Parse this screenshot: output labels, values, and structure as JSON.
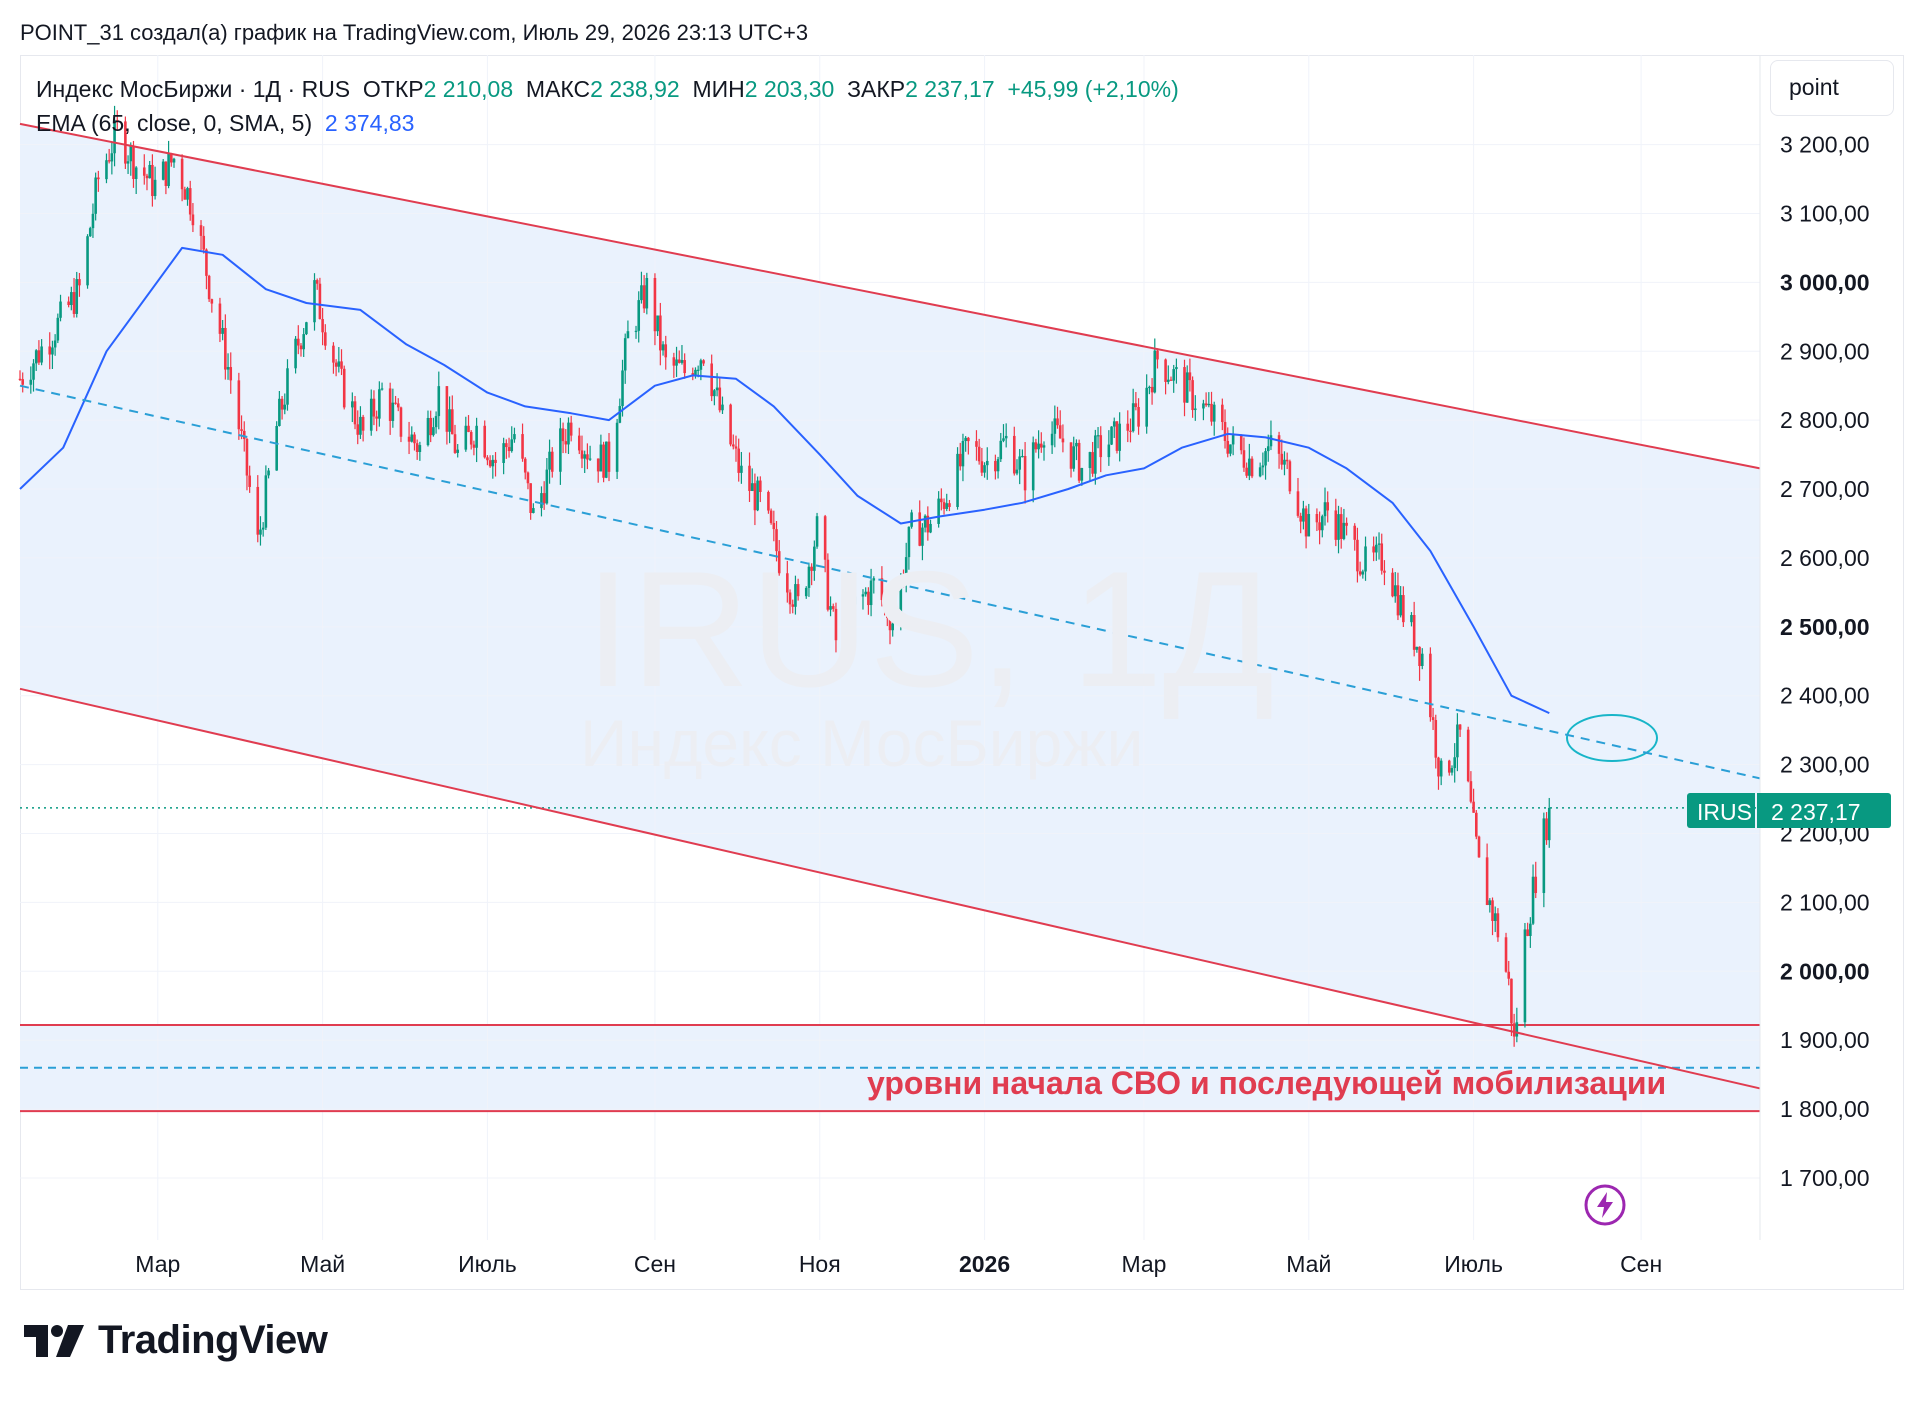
{
  "header": {
    "text": "POINT_31 создал(а) график на TradingView.com, Июль 29, 2026 23:13 UTC+3"
  },
  "legend": {
    "line1": {
      "title": "Индекс МосБиржи · 1Д · RUS",
      "open_label": "ОТКР",
      "open": "2 210,08",
      "high_label": "МАКС",
      "high": "2 238,92",
      "low_label": "МИН",
      "low": "2 203,30",
      "close_label": "ЗАКР",
      "close": "2 237,17",
      "change": "+45,99 (+2,10%)"
    },
    "line2": {
      "indicator": "EMA (65, close, 0, SMA, 5)",
      "value": "2 374,83"
    }
  },
  "unit_label": "point",
  "watermark": {
    "main": "IRUS, 1Д",
    "sub": "Индекс МосБиржи"
  },
  "price_tag": {
    "symbol": "IRUS",
    "value": "2 237,17"
  },
  "annotation": "уровни начала СВО и последующей мобилизации",
  "logo_text": "TradingView",
  "colors": {
    "up": "#089981",
    "down": "#f23645",
    "ema": "#2962ff",
    "channel": "#e03c50",
    "midline": "#2a9fd6",
    "fill": "#eaf2fd",
    "ellipse": "#18b5c8"
  },
  "chart_data": {
    "type": "candlestick",
    "symbol": "IRUS",
    "interval": "1Д",
    "ylim": [
      1610,
      3330
    ],
    "x_range": [
      "2025-01-09",
      "2026-10-15"
    ],
    "y_ticks": [
      {
        "value": 3200,
        "label": "3 200,00",
        "bold": false
      },
      {
        "value": 3100,
        "label": "3 100,00",
        "bold": false
      },
      {
        "value": 3000,
        "label": "3 000,00",
        "bold": true
      },
      {
        "value": 2900,
        "label": "2 900,00",
        "bold": false
      },
      {
        "value": 2800,
        "label": "2 800,00",
        "bold": false
      },
      {
        "value": 2700,
        "label": "2 700,00",
        "bold": false
      },
      {
        "value": 2600,
        "label": "2 600,00",
        "bold": false
      },
      {
        "value": 2500,
        "label": "2 500,00",
        "bold": true
      },
      {
        "value": 2400,
        "label": "2 400,00",
        "bold": false
      },
      {
        "value": 2300,
        "label": "2 300,00",
        "bold": false
      },
      {
        "value": 2200,
        "label": "2 200,00",
        "bold": false
      },
      {
        "value": 2100,
        "label": "2 100,00",
        "bold": false
      },
      {
        "value": 2000,
        "label": "2 000,00",
        "bold": true
      },
      {
        "value": 1900,
        "label": "1 900,00",
        "bold": false
      },
      {
        "value": 1800,
        "label": "1 800,00",
        "bold": false
      },
      {
        "value": 1700,
        "label": "1 700,00",
        "bold": false
      }
    ],
    "x_ticks": [
      {
        "date": "2025-03-01",
        "label": "Мар",
        "bold": false
      },
      {
        "date": "2025-05-01",
        "label": "Май",
        "bold": false
      },
      {
        "date": "2025-07-01",
        "label": "Июль",
        "bold": false
      },
      {
        "date": "2025-09-01",
        "label": "Сен",
        "bold": false
      },
      {
        "date": "2025-11-01",
        "label": "Ноя",
        "bold": false
      },
      {
        "date": "2026-01-01",
        "label": "2026",
        "bold": true
      },
      {
        "date": "2026-03-01",
        "label": "Мар",
        "bold": false
      },
      {
        "date": "2026-05-01",
        "label": "Май",
        "bold": false
      },
      {
        "date": "2026-07-01",
        "label": "Июль",
        "bold": false
      },
      {
        "date": "2026-09-01",
        "label": "Сен",
        "bold": false
      }
    ],
    "price_path": [
      [
        "2025-01-09",
        2860
      ],
      [
        "2025-01-20",
        2920
      ],
      [
        "2025-01-31",
        2990
      ],
      [
        "2025-02-07",
        3150
      ],
      [
        "2025-02-14",
        3220
      ],
      [
        "2025-02-21",
        3170
      ],
      [
        "2025-02-28",
        3140
      ],
      [
        "2025-03-07",
        3180
      ],
      [
        "2025-03-14",
        3110
      ],
      [
        "2025-03-21",
        2980
      ],
      [
        "2025-03-28",
        2860
      ],
      [
        "2025-04-04",
        2700
      ],
      [
        "2025-04-07",
        2620
      ],
      [
        "2025-04-14",
        2790
      ],
      [
        "2025-04-21",
        2900
      ],
      [
        "2025-04-28",
        2990
      ],
      [
        "2025-05-08",
        2850
      ],
      [
        "2025-05-16",
        2780
      ],
      [
        "2025-05-23",
        2840
      ],
      [
        "2025-05-30",
        2790
      ],
      [
        "2025-06-06",
        2760
      ],
      [
        "2025-06-13",
        2840
      ],
      [
        "2025-06-20",
        2750
      ],
      [
        "2025-06-27",
        2790
      ],
      [
        "2025-07-04",
        2740
      ],
      [
        "2025-07-11",
        2780
      ],
      [
        "2025-07-18",
        2660
      ],
      [
        "2025-07-25",
        2740
      ],
      [
        "2025-08-01",
        2800
      ],
      [
        "2025-08-08",
        2750
      ],
      [
        "2025-08-15",
        2740
      ],
      [
        "2025-08-22",
        2920
      ],
      [
        "2025-08-29",
        2990
      ],
      [
        "2025-09-05",
        2880
      ],
      [
        "2025-09-12",
        2870
      ],
      [
        "2025-09-19",
        2900
      ],
      [
        "2025-09-26",
        2800
      ],
      [
        "2025-10-03",
        2720
      ],
      [
        "2025-10-10",
        2680
      ],
      [
        "2025-10-17",
        2600
      ],
      [
        "2025-10-24",
        2530
      ],
      [
        "2025-10-31",
        2640
      ],
      [
        "2025-11-07",
        2480
      ],
      [
        "2025-11-14",
        2530
      ],
      [
        "2025-11-21",
        2560
      ],
      [
        "2025-11-28",
        2510
      ],
      [
        "2025-12-05",
        2640
      ],
      [
        "2025-12-12",
        2650
      ],
      [
        "2025-12-19",
        2700
      ],
      [
        "2025-12-26",
        2760
      ],
      [
        "2026-01-02",
        2740
      ],
      [
        "2026-01-09",
        2770
      ],
      [
        "2026-01-16",
        2720
      ],
      [
        "2026-01-23",
        2790
      ],
      [
        "2026-01-30",
        2770
      ],
      [
        "2026-02-06",
        2730
      ],
      [
        "2026-02-13",
        2760
      ],
      [
        "2026-02-20",
        2780
      ],
      [
        "2026-02-27",
        2810
      ],
      [
        "2026-03-06",
        2890
      ],
      [
        "2026-03-13",
        2860
      ],
      [
        "2026-03-20",
        2830
      ],
      [
        "2026-03-27",
        2800
      ],
      [
        "2026-04-03",
        2760
      ],
      [
        "2026-04-10",
        2740
      ],
      [
        "2026-04-17",
        2760
      ],
      [
        "2026-04-24",
        2720
      ],
      [
        "2026-05-01",
        2640
      ],
      [
        "2026-05-08",
        2670
      ],
      [
        "2026-05-15",
        2630
      ],
      [
        "2026-05-22",
        2590
      ],
      [
        "2026-05-29",
        2600
      ],
      [
        "2026-06-05",
        2520
      ],
      [
        "2026-06-12",
        2460
      ],
      [
        "2026-06-19",
        2280
      ],
      [
        "2026-06-26",
        2340
      ],
      [
        "2026-07-03",
        2150
      ],
      [
        "2026-07-10",
        2060
      ],
      [
        "2026-07-14",
        1980
      ],
      [
        "2026-07-16",
        1895
      ],
      [
        "2026-07-20",
        2050
      ],
      [
        "2026-07-24",
        2140
      ],
      [
        "2026-07-29",
        2237.17
      ]
    ],
    "ema_path": [
      [
        "2025-01-09",
        2700
      ],
      [
        "2025-01-25",
        2760
      ],
      [
        "2025-02-10",
        2900
      ],
      [
        "2025-03-10",
        3050
      ],
      [
        "2025-03-25",
        3040
      ],
      [
        "2025-04-10",
        2990
      ],
      [
        "2025-04-25",
        2970
      ],
      [
        "2025-05-15",
        2960
      ],
      [
        "2025-06-01",
        2910
      ],
      [
        "2025-06-15",
        2880
      ],
      [
        "2025-07-01",
        2840
      ],
      [
        "2025-07-15",
        2820
      ],
      [
        "2025-08-01",
        2810
      ],
      [
        "2025-08-15",
        2800
      ],
      [
        "2025-09-01",
        2850
      ],
      [
        "2025-09-15",
        2865
      ],
      [
        "2025-10-01",
        2860
      ],
      [
        "2025-10-15",
        2820
      ],
      [
        "2025-11-01",
        2750
      ],
      [
        "2025-11-15",
        2690
      ],
      [
        "2025-12-01",
        2650
      ],
      [
        "2025-12-15",
        2660
      ],
      [
        "2026-01-01",
        2670
      ],
      [
        "2026-01-15",
        2680
      ],
      [
        "2026-02-01",
        2700
      ],
      [
        "2026-02-15",
        2720
      ],
      [
        "2026-03-01",
        2730
      ],
      [
        "2026-03-15",
        2760
      ],
      [
        "2026-04-01",
        2780
      ],
      [
        "2026-04-15",
        2775
      ],
      [
        "2026-05-01",
        2760
      ],
      [
        "2026-05-15",
        2730
      ],
      [
        "2026-06-01",
        2680
      ],
      [
        "2026-06-15",
        2610
      ],
      [
        "2026-07-01",
        2500
      ],
      [
        "2026-07-15",
        2400
      ],
      [
        "2026-07-29",
        2374.83
      ]
    ],
    "channel": {
      "upper": [
        [
          "2025-01-09",
          3230
        ],
        [
          "2026-10-15",
          2730
        ]
      ],
      "lower": [
        [
          "2025-01-09",
          2410
        ],
        [
          "2026-10-15",
          1830
        ]
      ],
      "middle": [
        [
          "2025-01-09",
          2850
        ],
        [
          "2026-10-15",
          2280
        ]
      ]
    },
    "horizontal_levels": [
      {
        "value": 1922,
        "style": "solid"
      },
      {
        "value": 1860,
        "style": "dashed"
      },
      {
        "value": 1797,
        "style": "solid"
      }
    ],
    "last_price": 2237.17
  }
}
